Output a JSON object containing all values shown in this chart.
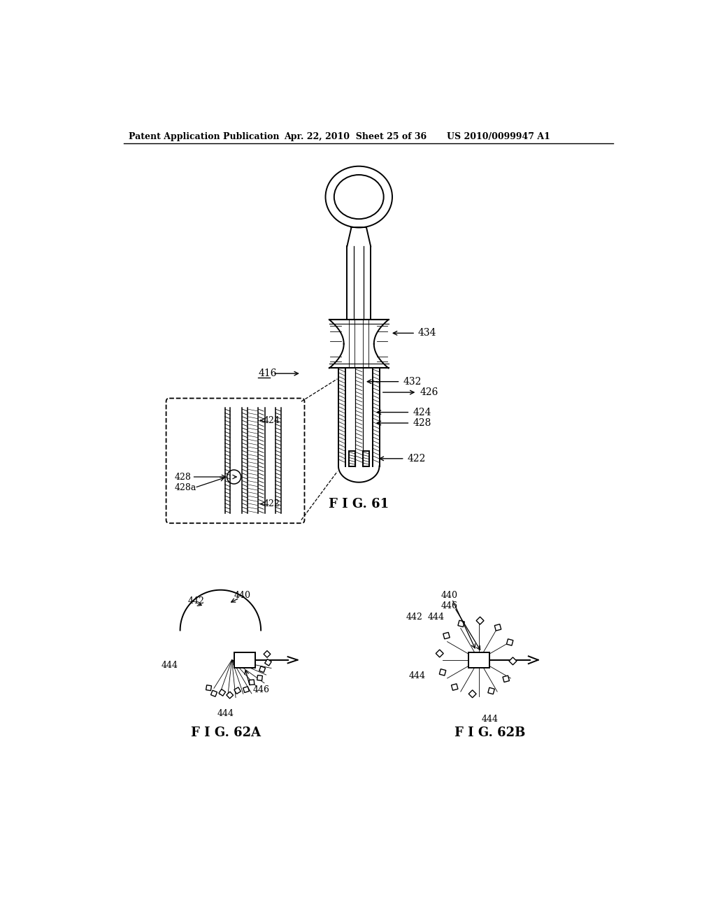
{
  "bg_color": "#ffffff",
  "header_left": "Patent Application Publication",
  "header_mid": "Apr. 22, 2010  Sheet 25 of 36",
  "header_right": "US 2010/0099947 A1",
  "fig61_label": "F I G. 61",
  "fig62a_label": "F I G. 62A",
  "fig62b_label": "F I G. 62B",
  "lc": "#000000",
  "lw": 1.4
}
